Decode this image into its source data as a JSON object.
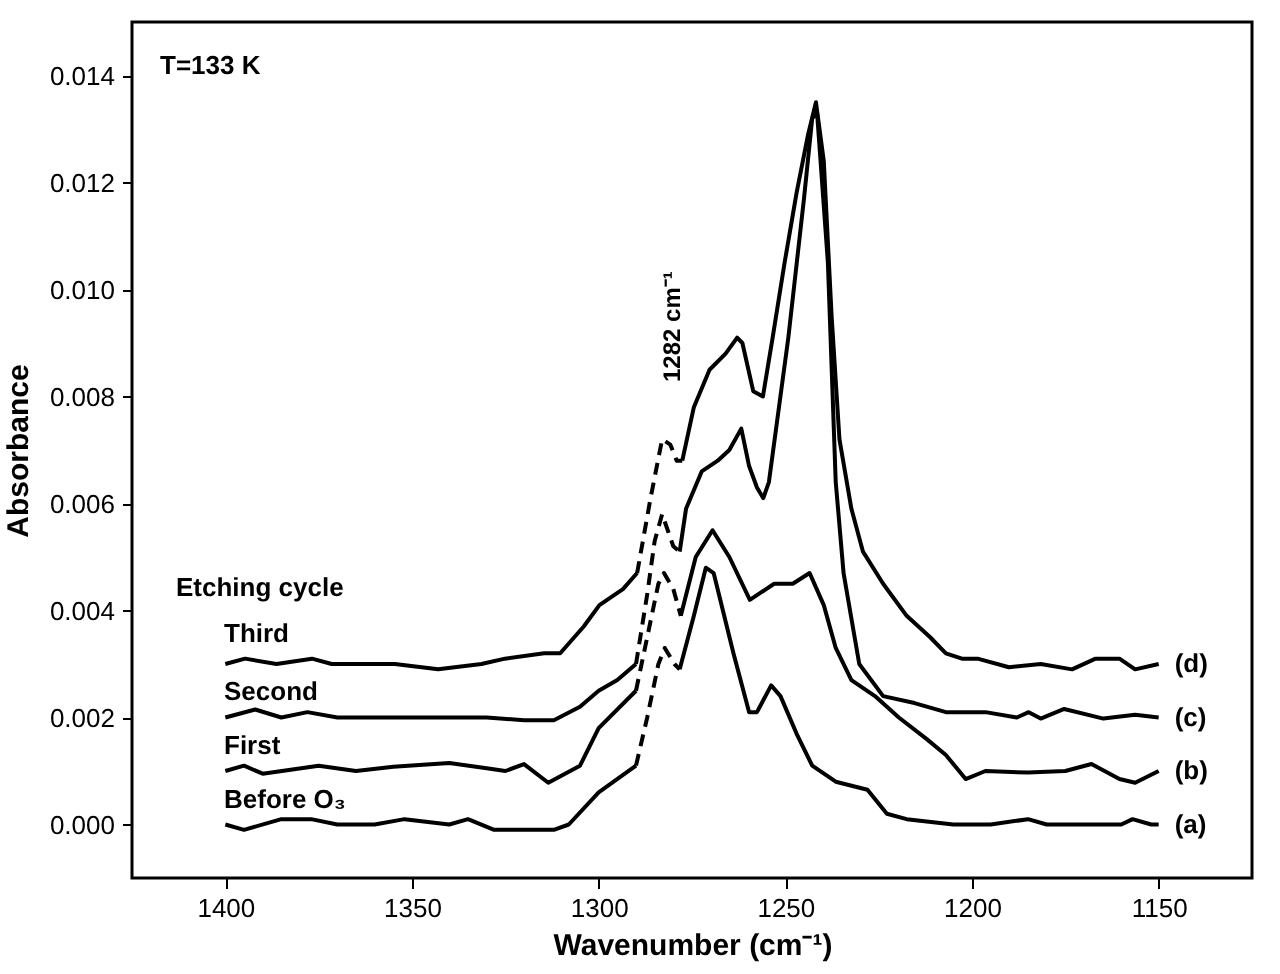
{
  "chart_data": {
    "type": "line",
    "xlabel": "Wavenumber (cm⁻¹)",
    "ylabel": "Absorbance",
    "xlim": [
      1425,
      1125
    ],
    "ylim": [
      -0.001,
      0.015
    ],
    "xticks": [
      1400,
      1350,
      1300,
      1250,
      1200,
      1150
    ],
    "yticks": [
      {
        "value": 0,
        "label": "0.000"
      },
      {
        "value": 0.002,
        "label": "0.002"
      },
      {
        "value": 0.004,
        "label": "0.004"
      },
      {
        "value": 0.006,
        "label": "0.006"
      },
      {
        "value": 0.008,
        "label": "0.008"
      },
      {
        "value": 0.01,
        "label": "0.010"
      },
      {
        "value": 0.012,
        "label": "0.012"
      },
      {
        "value": 0.014,
        "label": "0.014"
      }
    ],
    "grid": false,
    "annotations": [
      "T=133 K",
      "Etching  cycle",
      "1282 cm⁻¹",
      "Third",
      "Second",
      "First",
      "Before O₃"
    ],
    "series": [
      {
        "color": "#000000",
        "line_style": "solid",
        "x": [
          1400,
          1395,
          1385,
          1377,
          1370,
          1360,
          1352,
          1340,
          1335,
          1328,
          1315,
          1312,
          1308,
          1300,
          1290
        ],
        "values": [
          0,
          -0.0001,
          0.0001,
          0.0001,
          0,
          0,
          0.0001,
          0,
          0.0001,
          -0.0001,
          -0.0001,
          -0.0001,
          0,
          0.0006,
          0.0011
        ]
      },
      {
        "color": "#000000",
        "line_style": "dashed",
        "x": [
          1290,
          1287,
          1284,
          1282.3,
          1279.7,
          1278.3
        ],
        "values": [
          0.0011,
          0.002,
          0.003,
          0.0033,
          0.003,
          0.0029
        ]
      },
      {
        "name": "(a)",
        "color": "#000000",
        "line_style": "solid",
        "x": [
          1278.3,
          1274.5,
          1271.3,
          1269.2,
          1263.9,
          1259.7,
          1257.6,
          1253.8,
          1251.3,
          1247,
          1242.8,
          1236.5,
          1228,
          1222.8,
          1217.5,
          1205,
          1195,
          1185,
          1180,
          1170,
          1160,
          1157,
          1152,
          1150
        ],
        "values": [
          0.0029,
          0.0039,
          0.0048,
          0.0047,
          0.0032,
          0.0021,
          0.0021,
          0.0026,
          0.0024,
          0.0017,
          0.0011,
          0.0008,
          0.00065,
          0.0002,
          0.0001,
          0,
          0,
          0.0001,
          0,
          0,
          0,
          0.0001,
          0,
          0
        ]
      },
      {
        "color": "#000000",
        "line_style": "solid",
        "x": [
          1400,
          1395,
          1390,
          1375,
          1365,
          1355,
          1340,
          1330,
          1325,
          1320,
          1313.5,
          1305,
          1300,
          1290
        ],
        "values": [
          0.001,
          0.0011,
          0.00095,
          0.0011,
          0.001,
          0.00108,
          0.00115,
          0.00105,
          0.001,
          0.00113,
          0.00078,
          0.0011,
          0.0018,
          0.0025
        ]
      },
      {
        "color": "#000000",
        "line_style": "dashed",
        "x": [
          1290,
          1287,
          1284,
          1282.5,
          1280,
          1278
        ],
        "values": [
          0.0025,
          0.0035,
          0.0045,
          0.0047,
          0.0044,
          0.0039
        ]
      },
      {
        "name": "(b)",
        "color": "#000000",
        "line_style": "solid",
        "x": [
          1278,
          1274,
          1269.5,
          1265,
          1259.5,
          1253,
          1248,
          1243.5,
          1239.7,
          1236.5,
          1232.3,
          1226,
          1219.6,
          1212.2,
          1207,
          1201.7,
          1196.4,
          1185,
          1175,
          1168,
          1160.5,
          1156.3,
          1150
        ],
        "values": [
          0.0039,
          0.005,
          0.0055,
          0.005,
          0.0042,
          0.0045,
          0.0045,
          0.0047,
          0.0041,
          0.0033,
          0.0027,
          0.0024,
          0.002,
          0.0016,
          0.0013,
          0.00085,
          0.001,
          0.00097,
          0.001,
          0.00113,
          0.00085,
          0.00078,
          0.001
        ]
      },
      {
        "color": "#000000",
        "line_style": "solid",
        "x": [
          1400,
          1392,
          1385,
          1378,
          1370,
          1350,
          1330,
          1320,
          1312,
          1305,
          1300,
          1295,
          1290
        ],
        "values": [
          0.002,
          0.00215,
          0.002,
          0.0021,
          0.002,
          0.002,
          0.002,
          0.00195,
          0.00195,
          0.0022,
          0.0025,
          0.0027,
          0.003
        ]
      },
      {
        "color": "#000000",
        "line_style": "dashed",
        "x": [
          1290,
          1287,
          1285,
          1283,
          1280,
          1278.3
        ],
        "values": [
          0.003,
          0.0043,
          0.0053,
          0.0058,
          0.0052,
          0.0051
        ]
      },
      {
        "name": "(c)",
        "color": "#000000",
        "line_style": "solid",
        "x": [
          1278.3,
          1276.6,
          1272.4,
          1268.1,
          1265,
          1261.8,
          1259.7,
          1257.6,
          1255.9,
          1254.4,
          1249.2,
          1245,
          1242.8,
          1241.5,
          1238.6,
          1236.5,
          1234.4,
          1230.2,
          1223.8,
          1215.4,
          1207,
          1196.4,
          1188,
          1184.8,
          1181.6,
          1175.3,
          1164.8,
          1156.3,
          1150
        ],
        "values": [
          0.0051,
          0.0059,
          0.0066,
          0.0068,
          0.007,
          0.0074,
          0.0067,
          0.0063,
          0.0061,
          0.0064,
          0.0091,
          0.0117,
          0.0132,
          0.0133,
          0.0105,
          0.0064,
          0.0047,
          0.003,
          0.0024,
          0.00227,
          0.0021,
          0.0021,
          0.002,
          0.0021,
          0.00198,
          0.00216,
          0.00198,
          0.00205,
          0.002
        ]
      },
      {
        "color": "#000000",
        "line_style": "solid",
        "x": [
          1400,
          1394.7,
          1386.3,
          1376.8,
          1371.5,
          1354.6,
          1343,
          1331.4,
          1325.1,
          1314.6,
          1310.3,
          1304,
          1299.8,
          1293.5,
          1289.7
        ],
        "values": [
          0.003,
          0.0031,
          0.003,
          0.0031,
          0.003,
          0.003,
          0.0029,
          0.003,
          0.0031,
          0.0032,
          0.0032,
          0.0037,
          0.0041,
          0.0044,
          0.0047
        ]
      },
      {
        "color": "#000000",
        "line_style": "dashed",
        "x": [
          1289.7,
          1286.1,
          1283,
          1280.8,
          1279.1,
          1277.6
        ],
        "values": [
          0.0047,
          0.0061,
          0.0072,
          0.0071,
          0.0068,
          0.0068
        ]
      },
      {
        "name": "(d)",
        "color": "#000000",
        "line_style": "solid",
        "x": [
          1277.6,
          1274.5,
          1270.3,
          1266,
          1262.9,
          1261.5,
          1258.6,
          1256,
          1253.4,
          1250.2,
          1247,
          1243.9,
          1241.8,
          1239.7,
          1237.6,
          1235.5,
          1232.3,
          1229.2,
          1223.8,
          1217.5,
          1211.2,
          1207,
          1202.7,
          1198.5,
          1190.1,
          1181.6,
          1173.2,
          1166.9,
          1160.5,
          1156.3,
          1150
        ],
        "values": [
          0.0068,
          0.0078,
          0.0085,
          0.0088,
          0.0091,
          0.009,
          0.0081,
          0.008,
          0.0091,
          0.0105,
          0.0118,
          0.0129,
          0.0135,
          0.0124,
          0.0095,
          0.0072,
          0.0059,
          0.0051,
          0.0045,
          0.0039,
          0.0035,
          0.0032,
          0.0031,
          0.0031,
          0.00294,
          0.003,
          0.0029,
          0.0031,
          0.0031,
          0.0029,
          0.003
        ]
      }
    ]
  }
}
